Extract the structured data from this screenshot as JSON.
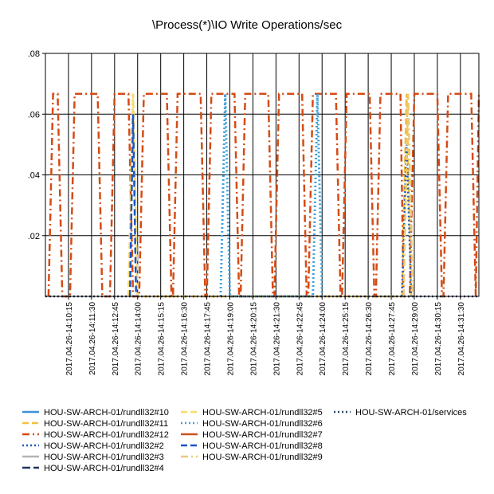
{
  "chart_data": {
    "type": "line",
    "title": "\\Process(*)\\IO Write Operations/sec",
    "xlabel": "",
    "ylabel": "",
    "ylim": [
      0,
      0.08
    ],
    "yticks": [
      {
        "value": 0.02,
        "label": ".02"
      },
      {
        "value": 0.04,
        "label": ".04"
      },
      {
        "value": 0.06,
        "label": ".06"
      },
      {
        "value": 0.08,
        "label": ".08"
      }
    ],
    "grid": true,
    "legend_position": "bottom",
    "xlim": [
      "2017.04.26-14:09:00",
      "2017.04.26-14:32:30"
    ],
    "xticks": [
      "2017.04.26-14:10:15",
      "2017.04.26-14:11:30",
      "2017.04.26-14:12:45",
      "2017.04.26-14:14:00",
      "2017.04.26-14:15:15",
      "2017.04.26-14:16:30",
      "2017.04.26-14:17:45",
      "2017.04.26-14:19:00",
      "2017.04.26-14:20:15",
      "2017.04.26-14:21:30",
      "2017.04.26-14:22:45",
      "2017.04.26-14:24:00",
      "2017.04.26-14:25:15",
      "2017.04.26-14:26:30",
      "2017.04.26-14:27:45",
      "2017.04.26-14:29:00",
      "2017.04.26-14:30:15",
      "2017.04.26-14:31:30"
    ],
    "series": [
      {
        "name": "HOU-SW-ARCH-01/rundll32#10",
        "color": "#3d8fd6",
        "dash": "solid",
        "width": 2.5,
        "points": []
      },
      {
        "name": "HOU-SW-ARCH-01/rundll32#11",
        "color": "#f0c040",
        "dash": "dash",
        "width": 2.5,
        "points": [
          [
            "2017.04.26-14:13:30",
            0
          ],
          [
            "2017.04.26-14:13:45",
            0.0667
          ],
          [
            "2017.04.26-14:14:00",
            0
          ],
          [
            "2017.04.26-14:28:20",
            0
          ],
          [
            "2017.04.26-14:28:35",
            0.0667
          ],
          [
            "2017.04.26-14:28:50",
            0
          ]
        ]
      },
      {
        "name": "HOU-SW-ARCH-01/rundll32#12",
        "color": "#d64b14",
        "dash": "dashdot",
        "width": 2.5,
        "points": [
          [
            "2017.04.26-14:09:10",
            0
          ],
          [
            "2017.04.26-14:09:25",
            0.0667
          ],
          [
            "2017.04.26-14:09:40",
            0.0667
          ],
          [
            "2017.04.26-14:09:55",
            0
          ],
          [
            "2017.04.26-14:10:20",
            0
          ],
          [
            "2017.04.26-14:10:35",
            0.0667
          ],
          [
            "2017.04.26-14:11:50",
            0.0667
          ],
          [
            "2017.04.26-14:12:05",
            0
          ],
          [
            "2017.04.26-14:12:30",
            0
          ],
          [
            "2017.04.26-14:12:45",
            0.0667
          ],
          [
            "2017.04.26-14:13:30",
            0.0667
          ],
          [
            "2017.04.26-14:13:45",
            0
          ],
          [
            "2017.04.26-14:14:05",
            0
          ],
          [
            "2017.04.26-14:14:20",
            0.0667
          ],
          [
            "2017.04.26-14:15:35",
            0.0667
          ],
          [
            "2017.04.26-14:15:50",
            0
          ],
          [
            "2017.04.26-14:15:55",
            0
          ],
          [
            "2017.04.26-14:16:10",
            0.0667
          ],
          [
            "2017.04.26-14:17:25",
            0.0667
          ],
          [
            "2017.04.26-14:17:40",
            0
          ],
          [
            "2017.04.26-14:17:45",
            0
          ],
          [
            "2017.04.26-14:18:00",
            0.0667
          ],
          [
            "2017.04.26-14:19:15",
            0.0667
          ],
          [
            "2017.04.26-14:19:30",
            0
          ],
          [
            "2017.04.26-14:19:35",
            0
          ],
          [
            "2017.04.26-14:19:50",
            0.0667
          ],
          [
            "2017.04.26-14:21:05",
            0.0667
          ],
          [
            "2017.04.26-14:21:20",
            0
          ],
          [
            "2017.04.26-14:21:25",
            0
          ],
          [
            "2017.04.26-14:21:40",
            0.0667
          ],
          [
            "2017.04.26-14:22:55",
            0.0667
          ],
          [
            "2017.04.26-14:23:10",
            0
          ],
          [
            "2017.04.26-14:23:15",
            0
          ],
          [
            "2017.04.26-14:23:30",
            0.0667
          ],
          [
            "2017.04.26-14:24:45",
            0.0667
          ],
          [
            "2017.04.26-14:25:00",
            0
          ],
          [
            "2017.04.26-14:25:05",
            0
          ],
          [
            "2017.04.26-14:25:20",
            0.0667
          ],
          [
            "2017.04.26-14:26:35",
            0.0667
          ],
          [
            "2017.04.26-14:26:50",
            0
          ],
          [
            "2017.04.26-14:26:55",
            0
          ],
          [
            "2017.04.26-14:27:10",
            0.0667
          ],
          [
            "2017.04.26-14:28:15",
            0.0667
          ],
          [
            "2017.04.26-14:28:25",
            0
          ],
          [
            "2017.04.26-14:28:45",
            0
          ],
          [
            "2017.04.26-14:29:00",
            0.0667
          ],
          [
            "2017.04.26-14:30:15",
            0.0667
          ],
          [
            "2017.04.26-14:30:30",
            0
          ],
          [
            "2017.04.26-14:30:35",
            0
          ],
          [
            "2017.04.26-14:30:50",
            0.0667
          ],
          [
            "2017.04.26-14:32:05",
            0.0667
          ],
          [
            "2017.04.26-14:32:20",
            0
          ],
          [
            "2017.04.26-14:32:30",
            0.0667
          ]
        ]
      },
      {
        "name": "HOU-SW-ARCH-01/rundll32#2",
        "color": "#1f5fb5",
        "dash": "dot",
        "width": 2.5,
        "points": [
          [
            "2017.04.26-14:28:20",
            0
          ],
          [
            "2017.04.26-14:28:35",
            0.05
          ],
          [
            "2017.04.26-14:28:50",
            0
          ]
        ]
      },
      {
        "name": "HOU-SW-ARCH-01/rundll32#3",
        "color": "#b4b4b4",
        "dash": "solid",
        "width": 2.5,
        "points": []
      },
      {
        "name": "HOU-SW-ARCH-01/rundll32#4",
        "color": "#1f3560",
        "dash": "longdash",
        "width": 2.5,
        "points": []
      },
      {
        "name": "HOU-SW-ARCH-01/rundll32#5",
        "color": "#f5dc6e",
        "dash": "dash",
        "width": 2.5,
        "points": [
          [
            "2017.04.26-14:13:30",
            0
          ],
          [
            "2017.04.26-14:13:45",
            0.0667
          ],
          [
            "2017.04.26-14:14:00",
            0
          ]
        ]
      },
      {
        "name": "HOU-SW-ARCH-01/rundll32#6",
        "color": "#3ea0dc",
        "dash": "dot",
        "width": 3,
        "points": [
          [
            "2017.04.26-14:18:30",
            0
          ],
          [
            "2017.04.26-14:18:45",
            0.0667
          ],
          [
            "2017.04.26-14:19:00",
            0
          ],
          [
            "2017.04.26-14:23:30",
            0
          ],
          [
            "2017.04.26-14:23:45",
            0.0667
          ],
          [
            "2017.04.26-14:24:00",
            0
          ]
        ]
      },
      {
        "name": "HOU-SW-ARCH-01/rundll32#7",
        "color": "#c8561e",
        "dash": "solid",
        "width": 2.5,
        "points": []
      },
      {
        "name": "HOU-SW-ARCH-01/rundll32#8",
        "color": "#1a56c4",
        "dash": "dash",
        "width": 2.5,
        "points": [
          [
            "2017.04.26-14:13:35",
            0
          ],
          [
            "2017.04.26-14:13:45",
            0.06
          ],
          [
            "2017.04.26-14:13:55",
            0
          ]
        ]
      },
      {
        "name": "HOU-SW-ARCH-01/rundll32#9",
        "color": "#eac87a",
        "dash": "dashdot",
        "width": 2.5,
        "points": [
          [
            "2017.04.26-14:28:25",
            0
          ],
          [
            "2017.04.26-14:28:40",
            0.0667
          ],
          [
            "2017.04.26-14:28:55",
            0
          ]
        ]
      },
      {
        "name": "HOU-SW-ARCH-01/services",
        "color": "#2a4560",
        "dash": "dot",
        "width": 2.5,
        "points": [
          [
            "2017.04.26-14:09:00",
            0
          ],
          [
            "2017.04.26-14:32:30",
            0
          ]
        ]
      }
    ]
  }
}
